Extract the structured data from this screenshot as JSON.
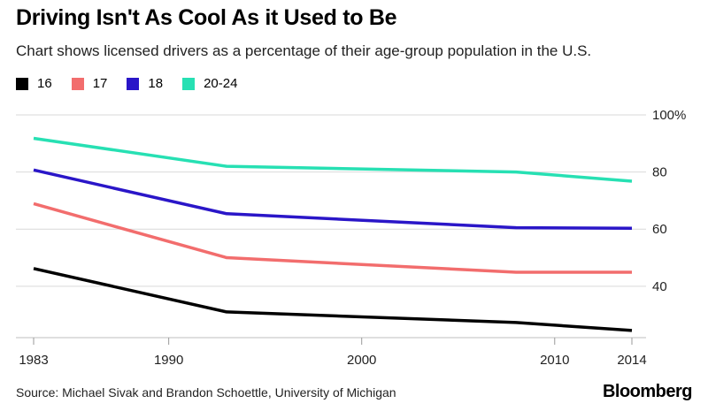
{
  "header": {
    "title": "Driving Isn't As Cool As it Used to Be",
    "subtitle": "Chart shows licensed drivers as a percentage of their age-group population in the U.S."
  },
  "footer": {
    "source": "Source: Michael Sivak and Brandon Schoettle, University of Michigan",
    "brand": "Bloomberg"
  },
  "chart_data": {
    "type": "line",
    "title": "Driving Isn't As Cool As it Used to Be",
    "subtitle": "Chart shows licensed drivers as a percentage of their age-group population in the U.S.",
    "x": [
      1983,
      1993,
      2008,
      2014
    ],
    "xlim": [
      1983,
      2014
    ],
    "ylim": [
      22,
      100
    ],
    "x_ticks": [
      {
        "value": 1983,
        "label": "1983"
      },
      {
        "value": 1990,
        "label": "1990"
      },
      {
        "value": 2000,
        "label": "2000"
      },
      {
        "value": 2010,
        "label": "2010"
      },
      {
        "value": 2014,
        "label": "2014"
      }
    ],
    "y_ticks": [
      {
        "value": 100,
        "label": "100%"
      },
      {
        "value": 80,
        "label": "80"
      },
      {
        "value": 60,
        "label": "60"
      },
      {
        "value": 40,
        "label": "40"
      }
    ],
    "grid": true,
    "legend_position": "top-left",
    "series": [
      {
        "name": "16",
        "color": "#000000",
        "values": [
          46.2,
          31.0,
          27.3,
          24.5
        ]
      },
      {
        "name": "17",
        "color": "#f26d6d",
        "values": [
          68.9,
          50.0,
          44.9,
          44.9
        ]
      },
      {
        "name": "18",
        "color": "#2a16c8",
        "values": [
          80.7,
          65.4,
          60.5,
          60.3
        ]
      },
      {
        "name": "20-24",
        "color": "#27e0b3",
        "values": [
          91.8,
          82.0,
          80.0,
          76.8
        ]
      }
    ]
  }
}
